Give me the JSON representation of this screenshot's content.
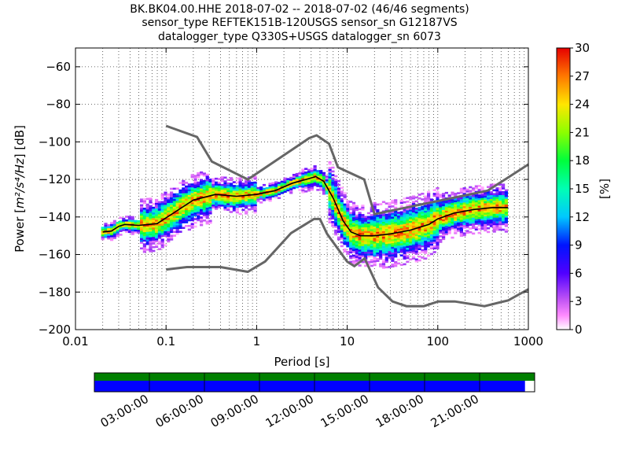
{
  "title": {
    "line1": "BK.BK04.00.HHE   2018-07-02 -- 2018-07-02  (46/46 segments)",
    "line2": "sensor_type REFTEK151B-120USGS sensor_sn G12187VS",
    "line3": "datalogger_type Q330S+USGS datalogger_sn 6073"
  },
  "chart_data": [
    {
      "type": "heatmap",
      "xlabel": "Period [s]",
      "ylabel_prefix": "Power [",
      "ylabel_math": "m²/s⁴/Hz",
      "ylabel_suffix": "] [dB]",
      "x_scale": "log",
      "xlim": [
        0.01,
        1000
      ],
      "ylim": [
        -200,
        -50
      ],
      "x_ticks": [
        0.01,
        0.1,
        1,
        10,
        100,
        1000
      ],
      "x_tick_labels": [
        "0.01",
        "0.1",
        "1",
        "10",
        "100",
        "1000"
      ],
      "y_ticks": [
        -200,
        -180,
        -160,
        -140,
        -120,
        -100,
        -80,
        -60
      ],
      "y_tick_labels": [
        "−200",
        "−180",
        "−160",
        "−140",
        "−120",
        "−100",
        "−80",
        "−60"
      ],
      "grid": "dotted vertical at periods, dotted horizontal",
      "colorbar": {
        "label": "[%]",
        "range": [
          0,
          30
        ],
        "ticks": [
          0,
          3,
          6,
          9,
          12,
          15,
          18,
          21,
          24,
          27,
          30
        ]
      },
      "high_noise_model": {
        "period": [
          0.1,
          0.22,
          0.32,
          0.8,
          3.8,
          4.6,
          6.3,
          7.9,
          15.4,
          20,
          354.8,
          1000
        ],
        "power": [
          -91.5,
          -97.4,
          -110.5,
          -120,
          -98,
          -96.5,
          -101,
          -113.5,
          -120,
          -138.5,
          -126,
          -112
        ]
      },
      "low_noise_model": {
        "period": [
          0.1,
          0.17,
          0.4,
          0.8,
          1.24,
          2.4,
          4.3,
          5,
          6,
          10,
          12,
          15.6,
          21.9,
          31.6,
          45,
          70,
          101,
          154,
          328,
          600,
          1000
        ],
        "power": [
          -168,
          -166.7,
          -166.7,
          -169.2,
          -163.7,
          -148.6,
          -141.1,
          -141.1,
          -149,
          -163.8,
          -166.2,
          -162.1,
          -177.5,
          -185,
          -187.5,
          -187.5,
          -185,
          -185,
          -187.5,
          -184.4,
          -178.5
        ]
      },
      "mean_psd": {
        "period": [
          0.02,
          0.025,
          0.03,
          0.035,
          0.05,
          0.08,
          0.12,
          0.2,
          0.35,
          0.6,
          1.0,
          1.6,
          2.5,
          3.5,
          4.5,
          5.5,
          7,
          9,
          11,
          14,
          20,
          30,
          50,
          80,
          100,
          150,
          250,
          400,
          600
        ],
        "power": [
          -148,
          -147.5,
          -145,
          -144,
          -144.5,
          -143.5,
          -138,
          -131,
          -128,
          -129,
          -128,
          -126,
          -122,
          -120,
          -118.5,
          -121,
          -130,
          -142,
          -148,
          -150,
          -150,
          -149,
          -147,
          -144,
          -141,
          -138,
          -136,
          -135,
          -135
        ]
      }
    },
    {
      "type": "timeline",
      "x_tick_labels": [
        "03:00:00",
        "06:00:00",
        "09:00:00",
        "12:00:00",
        "15:00:00",
        "18:00:00",
        "21:00:00"
      ],
      "data_coverage_fraction": 0.978,
      "colors": {
        "top_bar": "#007f00",
        "bottom_bar": "#0000ff"
      }
    }
  ]
}
